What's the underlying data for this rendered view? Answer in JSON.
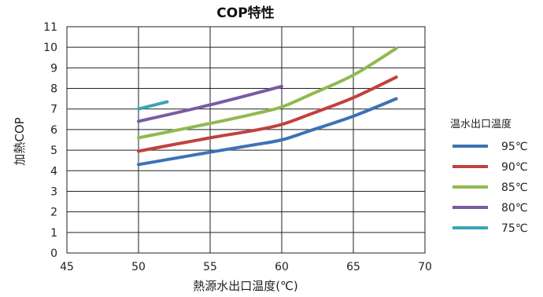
{
  "chart_data": {
    "type": "line",
    "title": "COP特性",
    "xlabel": "熱源水出口温度(℃)",
    "ylabel": "加熱COP",
    "xlim": [
      45,
      70
    ],
    "ylim": [
      0,
      11
    ],
    "x_ticks": [
      "45",
      "50",
      "55",
      "60",
      "65",
      "70"
    ],
    "y_ticks": [
      "0",
      "1",
      "2",
      "3",
      "4",
      "5",
      "6",
      "7",
      "8",
      "9",
      "10",
      "11"
    ],
    "grid": true,
    "legend": {
      "title": "温水出口温度",
      "position": "right"
    },
    "series": [
      {
        "name": "95℃",
        "color": "#3d72b4",
        "x": [
          50,
          55,
          58,
          60,
          62,
          65,
          68
        ],
        "y": [
          4.3,
          4.9,
          5.25,
          5.5,
          5.95,
          6.65,
          7.5
        ]
      },
      {
        "name": "90℃",
        "color": "#c0413e",
        "x": [
          50,
          55,
          58,
          60,
          62,
          65,
          68
        ],
        "y": [
          4.95,
          5.6,
          5.95,
          6.25,
          6.75,
          7.55,
          8.55
        ]
      },
      {
        "name": "85℃",
        "color": "#8fba4e",
        "x": [
          50,
          55,
          58,
          60,
          62,
          65,
          68
        ],
        "y": [
          5.6,
          6.3,
          6.75,
          7.1,
          7.7,
          8.65,
          9.95
        ]
      },
      {
        "name": "80℃",
        "color": "#7a5ba3",
        "x": [
          50,
          55,
          60
        ],
        "y": [
          6.4,
          7.2,
          8.1
        ]
      },
      {
        "name": "75℃",
        "color": "#3aa4b8",
        "x": [
          50,
          52
        ],
        "y": [
          7.0,
          7.35
        ]
      }
    ]
  }
}
